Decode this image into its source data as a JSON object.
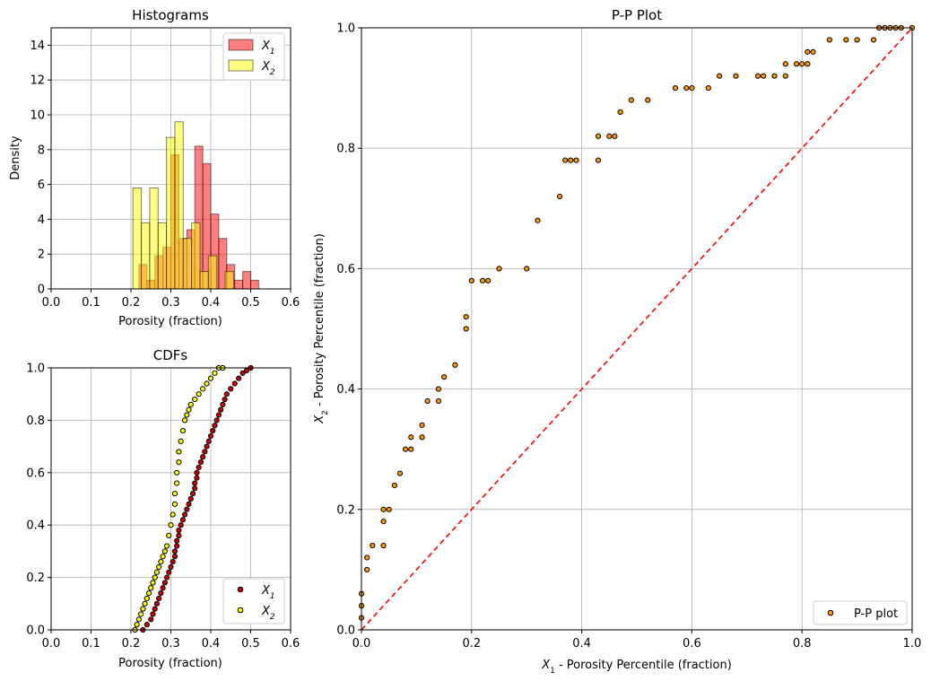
{
  "chart_data": [
    {
      "type": "histogram",
      "title": "Histograms",
      "xlabel": "Porosity (fraction)",
      "ylabel": "Density",
      "xlim": [
        0.0,
        0.6
      ],
      "ylim": [
        0,
        15
      ],
      "xticks": [
        "0.0",
        "0.1",
        "0.2",
        "0.3",
        "0.4",
        "0.5",
        "0.6"
      ],
      "yticks": [
        "0",
        "2",
        "4",
        "6",
        "8",
        "10",
        "12",
        "14"
      ],
      "grid": true,
      "legend": "top-right",
      "series": [
        {
          "name": "X1",
          "color": "#ff0000",
          "bins": [
            {
              "x0": 0.2,
              "x1": 0.22,
              "y": 0.0
            },
            {
              "x0": 0.22,
              "x1": 0.24,
              "y": 1.4
            },
            {
              "x0": 0.24,
              "x1": 0.26,
              "y": 0.5
            },
            {
              "x0": 0.26,
              "x1": 0.28,
              "y": 1.9
            },
            {
              "x0": 0.28,
              "x1": 0.3,
              "y": 2.4
            },
            {
              "x0": 0.3,
              "x1": 0.32,
              "y": 7.7
            },
            {
              "x0": 0.32,
              "x1": 0.34,
              "y": 2.9
            },
            {
              "x0": 0.34,
              "x1": 0.36,
              "y": 3.4
            },
            {
              "x0": 0.36,
              "x1": 0.38,
              "y": 8.2
            },
            {
              "x0": 0.38,
              "x1": 0.4,
              "y": 7.2
            },
            {
              "x0": 0.4,
              "x1": 0.42,
              "y": 4.3
            },
            {
              "x0": 0.42,
              "x1": 0.44,
              "y": 2.9
            },
            {
              "x0": 0.44,
              "x1": 0.46,
              "y": 1.4
            },
            {
              "x0": 0.46,
              "x1": 0.48,
              "y": 0.5
            },
            {
              "x0": 0.48,
              "x1": 0.5,
              "y": 1.0
            },
            {
              "x0": 0.5,
              "x1": 0.52,
              "y": 0.5
            }
          ]
        },
        {
          "name": "X2",
          "color": "#ffff00",
          "bins": [
            {
              "x0": 0.205,
              "x1": 0.226,
              "y": 5.8
            },
            {
              "x0": 0.226,
              "x1": 0.247,
              "y": 3.8
            },
            {
              "x0": 0.247,
              "x1": 0.268,
              "y": 5.8
            },
            {
              "x0": 0.268,
              "x1": 0.289,
              "y": 3.8
            },
            {
              "x0": 0.289,
              "x1": 0.31,
              "y": 8.7
            },
            {
              "x0": 0.31,
              "x1": 0.331,
              "y": 9.6
            },
            {
              "x0": 0.331,
              "x1": 0.352,
              "y": 2.9
            },
            {
              "x0": 0.352,
              "x1": 0.373,
              "y": 3.8
            },
            {
              "x0": 0.373,
              "x1": 0.394,
              "y": 1.0
            },
            {
              "x0": 0.394,
              "x1": 0.415,
              "y": 1.9
            },
            {
              "x0": 0.415,
              "x1": 0.436,
              "y": 0.0
            },
            {
              "x0": 0.436,
              "x1": 0.457,
              "y": 1.0
            }
          ]
        }
      ]
    },
    {
      "type": "scatter",
      "title": "CDFs",
      "xlabel": "Porosity (fraction)",
      "ylabel": "",
      "xlim": [
        0.0,
        0.6
      ],
      "ylim": [
        0.0,
        1.0
      ],
      "xticks": [
        "0.0",
        "0.1",
        "0.2",
        "0.3",
        "0.4",
        "0.5",
        "0.6"
      ],
      "yticks": [
        "0.0",
        "0.2",
        "0.4",
        "0.6",
        "0.8",
        "1.0"
      ],
      "grid": true,
      "legend": "bottom-right",
      "series": [
        {
          "name": "X1",
          "color": "#cc0000",
          "x": [
            0.23,
            0.24,
            0.25,
            0.255,
            0.26,
            0.265,
            0.27,
            0.275,
            0.28,
            0.285,
            0.29,
            0.295,
            0.3,
            0.305,
            0.31,
            0.31,
            0.315,
            0.315,
            0.32,
            0.32,
            0.325,
            0.33,
            0.335,
            0.34,
            0.345,
            0.35,
            0.355,
            0.36,
            0.36,
            0.365,
            0.365,
            0.37,
            0.375,
            0.38,
            0.385,
            0.39,
            0.395,
            0.4,
            0.405,
            0.41,
            0.415,
            0.42,
            0.425,
            0.43,
            0.435,
            0.44,
            0.45,
            0.46,
            0.47,
            0.48,
            0.49,
            0.5
          ],
          "y": [
            0.0,
            0.02,
            0.04,
            0.06,
            0.08,
            0.1,
            0.12,
            0.14,
            0.16,
            0.18,
            0.2,
            0.22,
            0.24,
            0.26,
            0.28,
            0.3,
            0.32,
            0.34,
            0.36,
            0.38,
            0.4,
            0.42,
            0.44,
            0.46,
            0.48,
            0.5,
            0.52,
            0.54,
            0.56,
            0.58,
            0.6,
            0.62,
            0.64,
            0.66,
            0.68,
            0.7,
            0.72,
            0.74,
            0.76,
            0.78,
            0.8,
            0.82,
            0.84,
            0.86,
            0.88,
            0.9,
            0.92,
            0.94,
            0.96,
            0.98,
            0.99,
            1.0
          ]
        },
        {
          "name": "X2",
          "color": "#ffff00",
          "x": [
            0.21,
            0.215,
            0.22,
            0.225,
            0.23,
            0.235,
            0.24,
            0.245,
            0.25,
            0.255,
            0.26,
            0.265,
            0.27,
            0.275,
            0.28,
            0.285,
            0.29,
            0.295,
            0.3,
            0.305,
            0.31,
            0.31,
            0.315,
            0.315,
            0.32,
            0.32,
            0.325,
            0.33,
            0.335,
            0.34,
            0.345,
            0.35,
            0.36,
            0.37,
            0.38,
            0.39,
            0.4,
            0.41,
            0.42,
            0.43
          ],
          "y": [
            0.0,
            0.02,
            0.04,
            0.06,
            0.08,
            0.1,
            0.12,
            0.14,
            0.16,
            0.18,
            0.2,
            0.22,
            0.24,
            0.26,
            0.28,
            0.3,
            0.32,
            0.36,
            0.4,
            0.44,
            0.48,
            0.52,
            0.56,
            0.6,
            0.64,
            0.68,
            0.72,
            0.76,
            0.8,
            0.82,
            0.84,
            0.86,
            0.88,
            0.9,
            0.92,
            0.94,
            0.96,
            0.98,
            1.0,
            1.0
          ]
        }
      ]
    },
    {
      "type": "scatter",
      "title": "P-P Plot",
      "xlabel": "X1 - Porosity Percentile (fraction)",
      "ylabel": "X2 - Porosity Percentile (fraction)",
      "xlim": [
        0.0,
        1.0
      ],
      "ylim": [
        0.0,
        1.0
      ],
      "xticks": [
        "0.0",
        "0.2",
        "0.4",
        "0.6",
        "0.8",
        "1.0"
      ],
      "yticks": [
        "0.0",
        "0.2",
        "0.4",
        "0.6",
        "0.8",
        "1.0"
      ],
      "grid": true,
      "legend": "bottom-right",
      "reference_line": {
        "x": [
          0,
          1
        ],
        "y": [
          0,
          1
        ],
        "color": "#ff0000",
        "style": "dashed"
      },
      "series": [
        {
          "name": "P-P plot",
          "color": "#ff9900",
          "x": [
            0.0,
            0.0,
            0.0,
            0.01,
            0.01,
            0.02,
            0.04,
            0.04,
            0.04,
            0.05,
            0.06,
            0.07,
            0.08,
            0.09,
            0.09,
            0.11,
            0.11,
            0.12,
            0.14,
            0.14,
            0.15,
            0.17,
            0.19,
            0.19,
            0.2,
            0.22,
            0.23,
            0.25,
            0.3,
            0.32,
            0.36,
            0.37,
            0.38,
            0.39,
            0.43,
            0.43,
            0.45,
            0.46,
            0.47,
            0.49,
            0.52,
            0.57,
            0.59,
            0.6,
            0.63,
            0.65,
            0.68,
            0.72,
            0.73,
            0.75,
            0.77,
            0.77,
            0.79,
            0.8,
            0.81,
            0.81,
            0.82,
            0.85,
            0.88,
            0.9,
            0.93,
            0.94,
            0.95,
            0.96,
            0.97,
            0.98,
            1.0
          ],
          "y": [
            0.02,
            0.04,
            0.06,
            0.1,
            0.12,
            0.14,
            0.14,
            0.18,
            0.2,
            0.2,
            0.24,
            0.26,
            0.3,
            0.3,
            0.32,
            0.32,
            0.34,
            0.38,
            0.38,
            0.4,
            0.42,
            0.44,
            0.5,
            0.52,
            0.58,
            0.58,
            0.58,
            0.6,
            0.6,
            0.68,
            0.72,
            0.78,
            0.78,
            0.78,
            0.78,
            0.82,
            0.82,
            0.82,
            0.86,
            0.88,
            0.88,
            0.9,
            0.9,
            0.9,
            0.9,
            0.92,
            0.92,
            0.92,
            0.92,
            0.92,
            0.92,
            0.94,
            0.94,
            0.94,
            0.94,
            0.96,
            0.96,
            0.98,
            0.98,
            0.98,
            0.98,
            1.0,
            1.0,
            1.0,
            1.0,
            1.0,
            1.0
          ]
        }
      ]
    }
  ]
}
